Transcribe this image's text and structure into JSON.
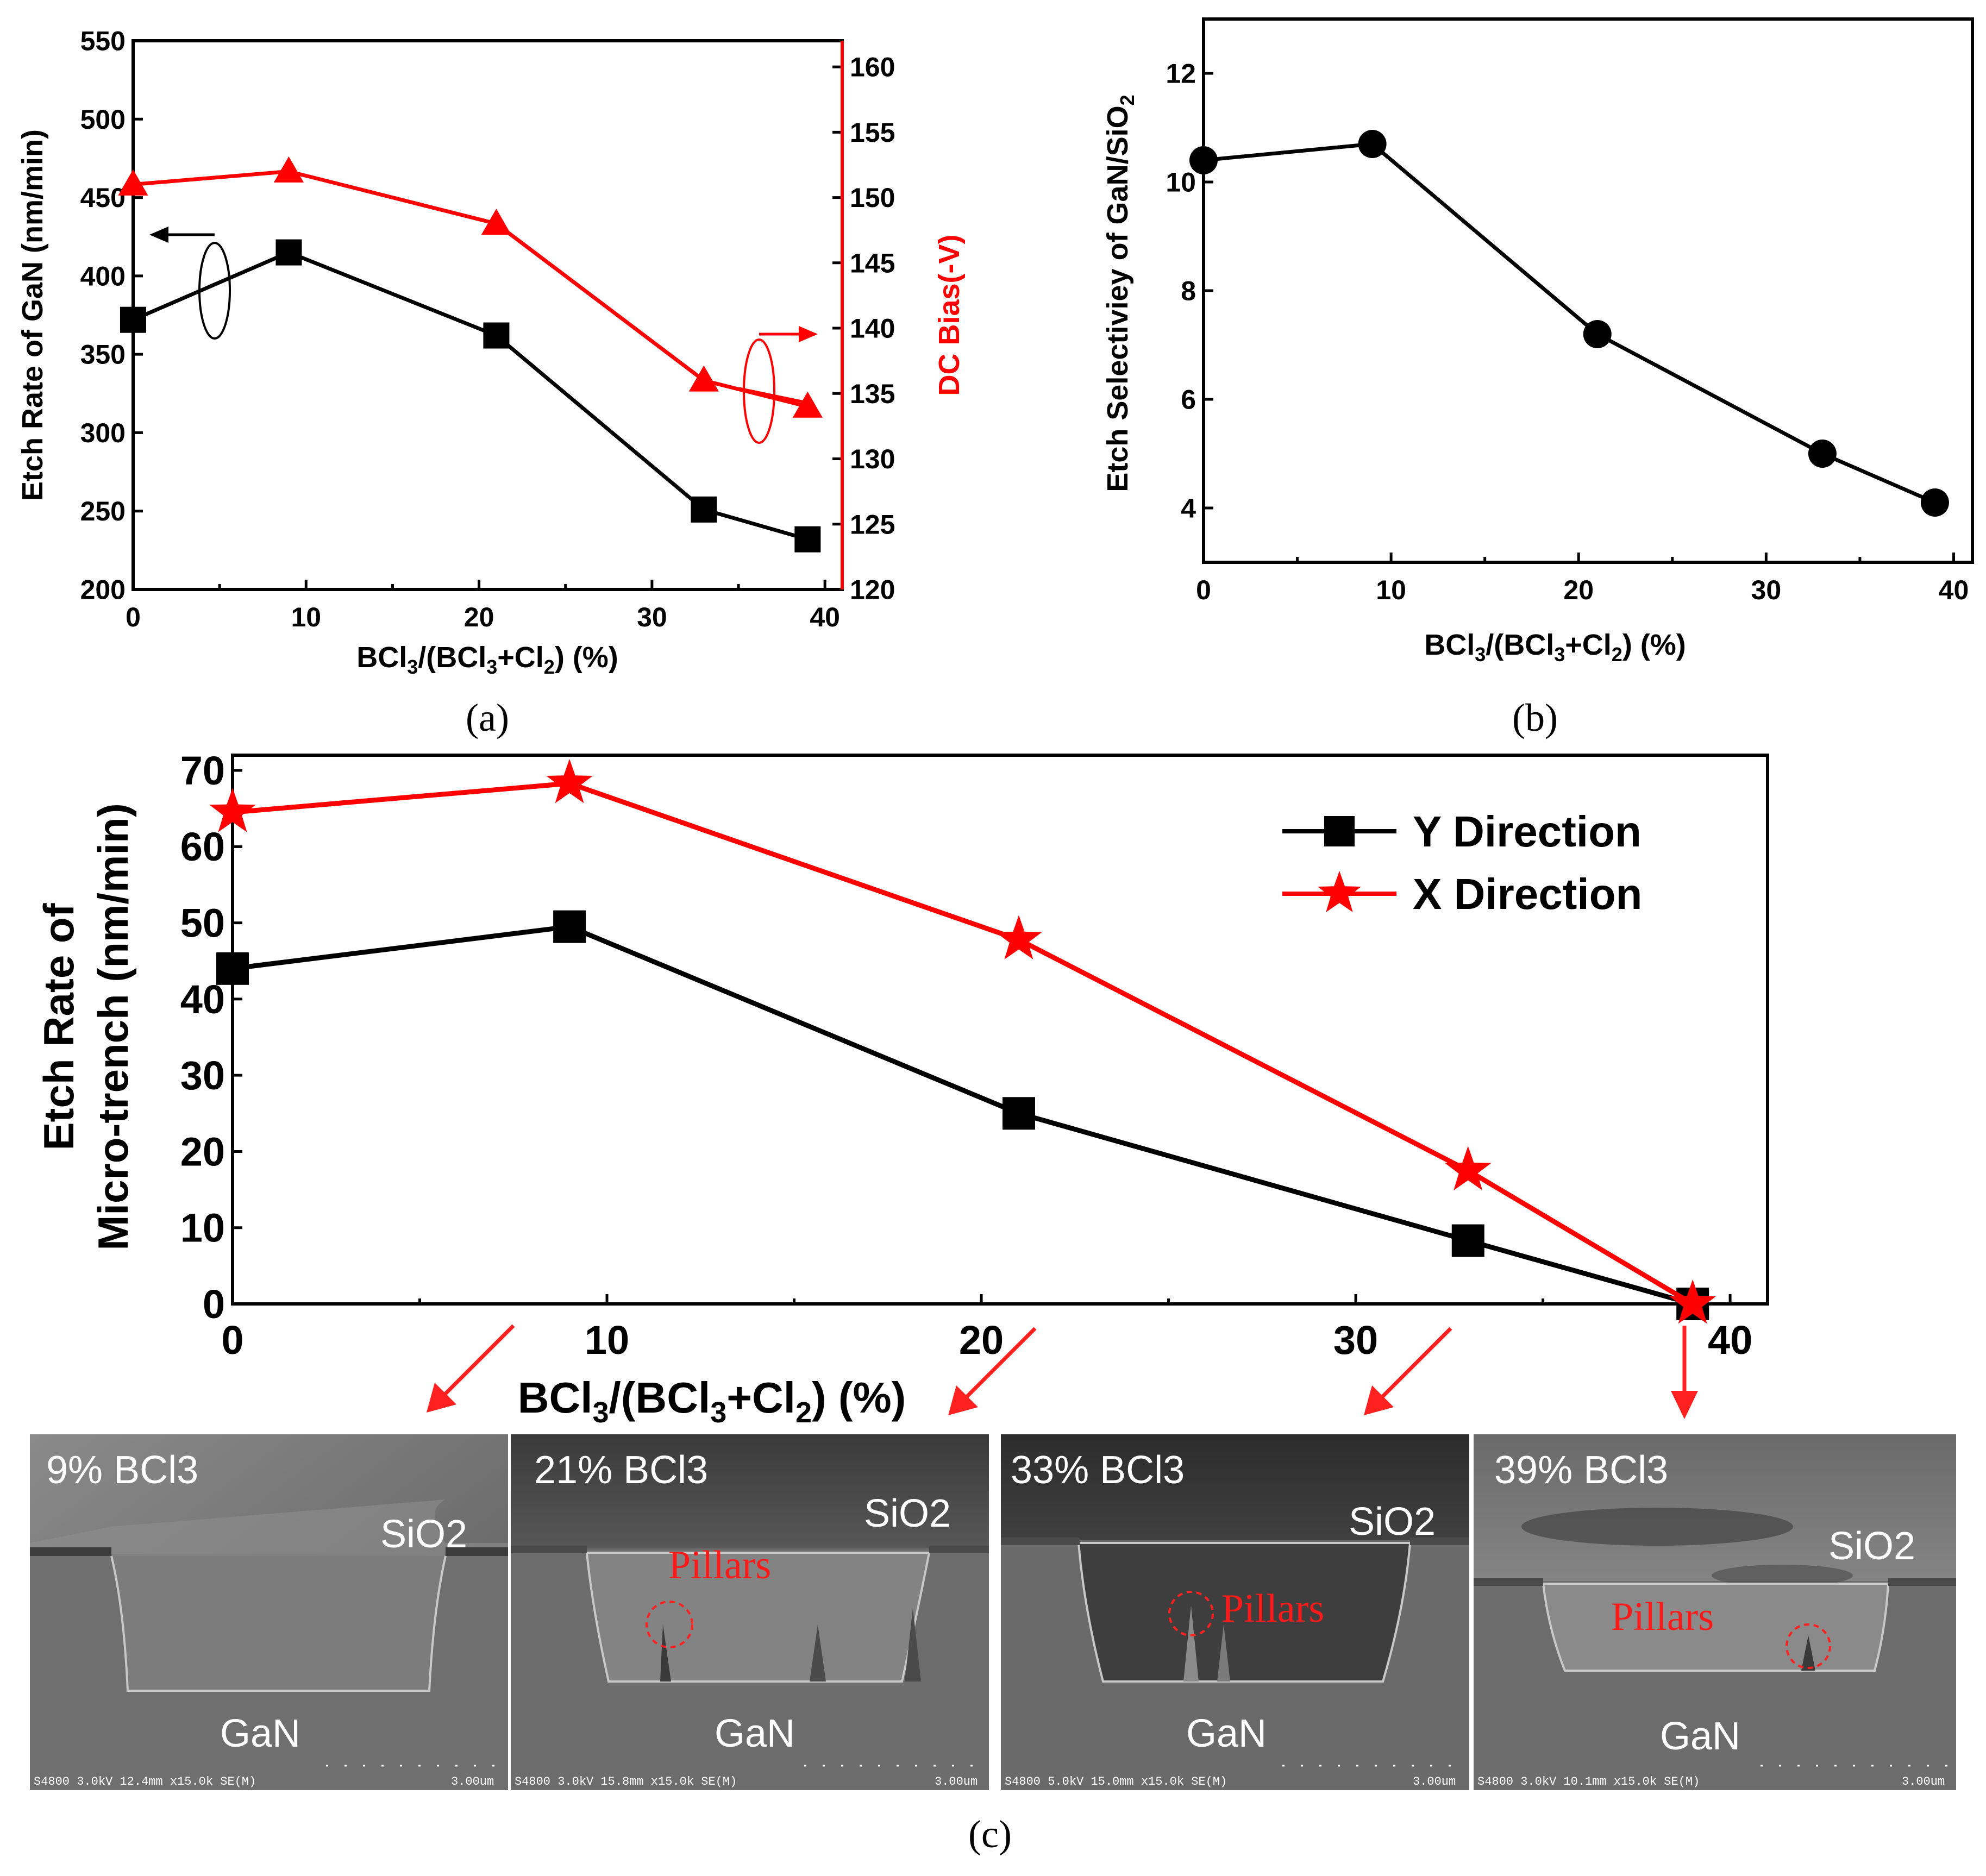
{
  "colors": {
    "black_series": "#000000",
    "red_series": "#ff0000",
    "sem_bg": "#6e6e6e"
  },
  "captions": {
    "a": "(a)",
    "b": "(b)",
    "c": "(c)"
  },
  "chart_data": [
    {
      "id": "a",
      "type": "line",
      "x": [
        0,
        9,
        21,
        33,
        39
      ],
      "xlabel": "BCl3/(BCl3+Cl2) (%)",
      "xlim": [
        0,
        41
      ],
      "xticks": [
        "0",
        "10",
        "20",
        "30",
        "40"
      ],
      "ylabel": "Etch Rate of GaN (nm/min)",
      "ylim": [
        200,
        550
      ],
      "yticks": [
        "200",
        "250",
        "300",
        "350",
        "400",
        "450",
        "500",
        "550"
      ],
      "y2label": "DC Bias(-V)",
      "y2lim": [
        120,
        162
      ],
      "y2ticks": [
        "120",
        "125",
        "130",
        "135",
        "140",
        "145",
        "150",
        "155",
        "160"
      ],
      "series": [
        {
          "name": "Etch Rate of GaN",
          "axis": "left",
          "marker": "square",
          "color": "#000000",
          "values": [
            372,
            415,
            362,
            251,
            232
          ]
        },
        {
          "name": "DC Bias",
          "axis": "right",
          "marker": "triangle",
          "color": "#ff0000",
          "values": [
            151,
            152,
            148,
            136,
            134
          ]
        }
      ]
    },
    {
      "id": "b",
      "type": "line",
      "x": [
        0,
        9,
        21,
        33,
        39
      ],
      "xlabel": "BCl3/(BCl3+Cl2) (%)",
      "xlim": [
        0,
        41
      ],
      "xticks": [
        "0",
        "10",
        "20",
        "30",
        "40"
      ],
      "ylabel": "Etch Selectiviey of GaN/SiO2",
      "ylim": [
        3,
        13
      ],
      "yticks": [
        "4",
        "6",
        "8",
        "10",
        "12"
      ],
      "series": [
        {
          "name": "Selectivity",
          "marker": "circle",
          "color": "#000000",
          "values": [
            10.4,
            10.7,
            7.2,
            5.0,
            4.1
          ]
        }
      ]
    },
    {
      "id": "c",
      "type": "line",
      "x": [
        0,
        9,
        21,
        33,
        39
      ],
      "xlabel": "BCl3/(BCl3+Cl2) (%)",
      "xlim": [
        0,
        41
      ],
      "xticks": [
        "0",
        "10",
        "20",
        "30",
        "40"
      ],
      "ylabel_line1": "Etch Rate of",
      "ylabel_line2": "Micro-trench (nm/min)",
      "ylim": [
        0,
        72
      ],
      "yticks": [
        "0",
        "10",
        "20",
        "30",
        "40",
        "50",
        "60",
        "70"
      ],
      "legend_position": "top-right",
      "series": [
        {
          "name": "Y Direction",
          "marker": "square",
          "color": "#000000",
          "values": [
            44,
            49.5,
            25,
            8.3,
            0
          ]
        },
        {
          "name": "X Direction",
          "marker": "star",
          "color": "#ff0000",
          "values": [
            64.5,
            68.3,
            47.8,
            17.5,
            0
          ]
        }
      ]
    }
  ],
  "sem_images": [
    {
      "label": "9% BCl3",
      "oxide": "SiO2",
      "substrate": "GaN",
      "pillars": "",
      "info": "S4800 3.0kV 12.4mm x15.0k SE(M)",
      "scale": "3.00um"
    },
    {
      "label": "21% BCl3",
      "oxide": "SiO2",
      "substrate": "GaN",
      "pillars": "Pillars",
      "info": "S4800 3.0kV 15.8mm x15.0k SE(M)",
      "scale": "3.00um"
    },
    {
      "label": "33% BCl3",
      "oxide": "SiO2",
      "substrate": "GaN",
      "pillars": "Pillars",
      "info": "S4800 5.0kV 15.0mm x15.0k SE(M)",
      "scale": "3.00um"
    },
    {
      "label": "39% BCl3",
      "oxide": "SiO2",
      "substrate": "GaN",
      "pillars": "Pillars",
      "info": "S4800 3.0kV 10.1mm x15.0k SE(M)",
      "scale": "3.00um"
    }
  ]
}
